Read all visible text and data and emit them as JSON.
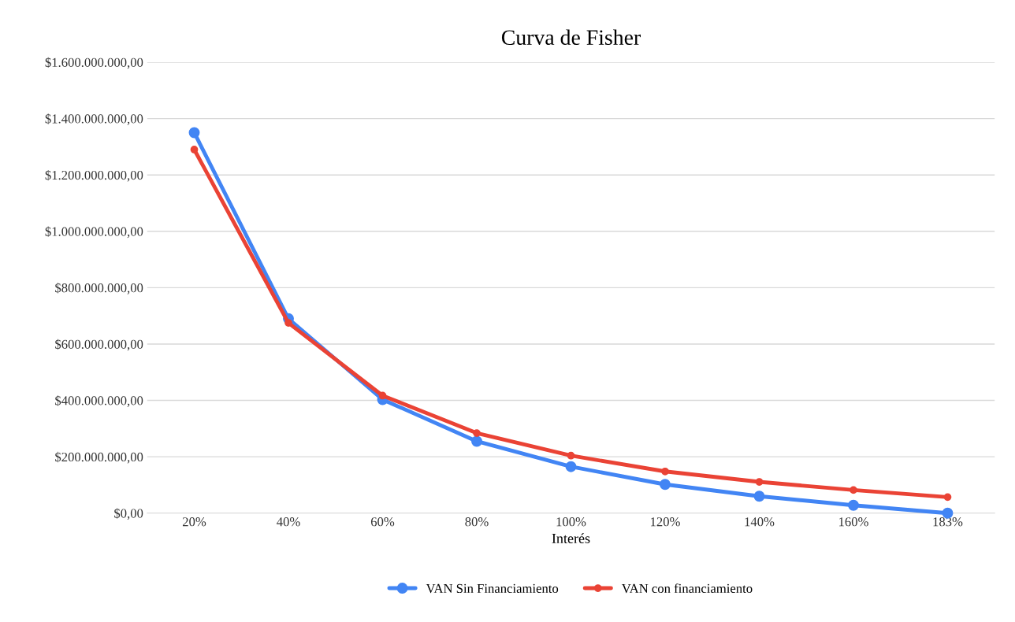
{
  "chart_data": {
    "type": "line",
    "title": "Curva de Fisher",
    "xlabel": "Interés",
    "categories": [
      "20%",
      "40%",
      "60%",
      "80%",
      "100%",
      "120%",
      "140%",
      "160%",
      "183%"
    ],
    "series": [
      {
        "name": "VAN Sin Financiamiento",
        "color": "#4285f4",
        "values": [
          1350000000,
          690000000,
          403000000,
          255000000,
          165000000,
          102000000,
          60000000,
          28000000,
          0
        ]
      },
      {
        "name": "VAN con financiamiento",
        "color": "#ea4335",
        "values": [
          1290000000,
          675000000,
          417000000,
          284000000,
          204000000,
          148000000,
          111000000,
          82000000,
          57000000
        ]
      }
    ],
    "ylim": [
      0,
      1600000000
    ],
    "yticks": [
      {
        "value": 0,
        "label": "$0,00"
      },
      {
        "value": 200000000,
        "label": "$200.000.000,00"
      },
      {
        "value": 400000000,
        "label": "$400.000.000,00"
      },
      {
        "value": 600000000,
        "label": "$600.000.000,00"
      },
      {
        "value": 800000000,
        "label": "$800.000.000,00"
      },
      {
        "value": 1000000000,
        "label": "$1.000.000.000,00"
      },
      {
        "value": 1200000000,
        "label": "$1.200.000.000,00"
      },
      {
        "value": 1400000000,
        "label": "$1.400.000.000,00"
      },
      {
        "value": 1600000000,
        "label": "$1.600.000.000,00"
      }
    ],
    "grid": "y",
    "legend": "bottom",
    "marker": "circle",
    "line_style": "solid"
  }
}
